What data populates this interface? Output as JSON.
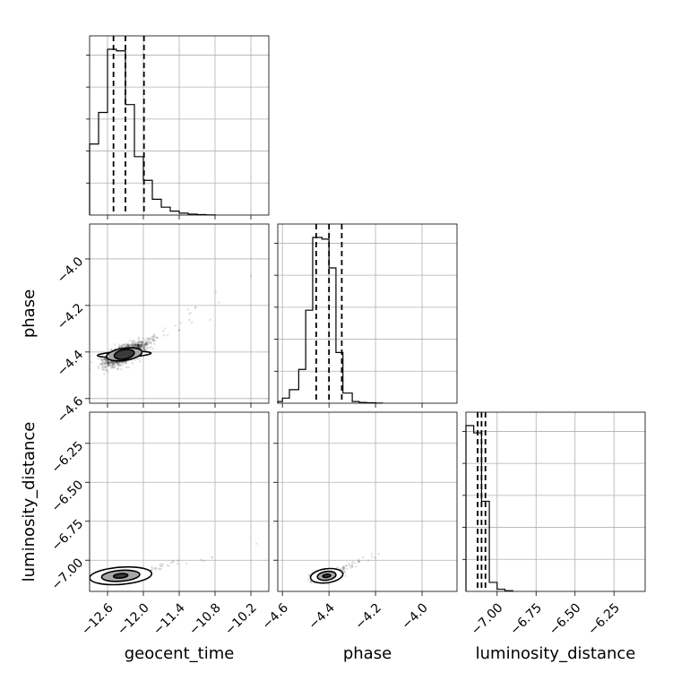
{
  "chart_data": {
    "type": "corner",
    "parameters": [
      "geocent_time",
      "phase",
      "luminosity_distance"
    ],
    "axes": {
      "geocent_time": {
        "label": "geocent_time",
        "range": [
          -12.9,
          -9.9
        ],
        "ticks": [
          -12.6,
          -12.0,
          -11.4,
          -10.8,
          -10.2
        ],
        "tick_labels": [
          "−12.6",
          "−12.0",
          "−11.4",
          "−10.8",
          "−10.2"
        ]
      },
      "phase": {
        "label": "phase",
        "range": [
          -4.62,
          -3.85
        ],
        "ticks": [
          -4.6,
          -4.4,
          -4.2,
          -4.0
        ],
        "tick_labels": [
          "−4.6",
          "−4.4",
          "−4.2",
          "−4.0"
        ]
      },
      "luminosity_distance": {
        "label": "luminosity_distance",
        "range": [
          -7.2,
          -6.05
        ],
        "ticks": [
          -7.0,
          -6.75,
          -6.5,
          -6.25
        ],
        "tick_labels": [
          "−7.00",
          "−6.75",
          "−6.50",
          "−6.25"
        ]
      }
    },
    "histograms": {
      "geocent_time": {
        "bin_edges": [
          -12.9,
          -12.75,
          -12.6,
          -12.45,
          -12.3,
          -12.15,
          -12.0,
          -11.85,
          -11.7,
          -11.55,
          -11.4,
          -11.25,
          -11.1,
          -10.95,
          -10.8
        ],
        "counts": [
          0.45,
          0.65,
          1.05,
          1.04,
          0.7,
          0.37,
          0.22,
          0.1,
          0.05,
          0.025,
          0.012,
          0.006,
          0.003,
          0.001
        ],
        "quantiles": [
          -12.5,
          -12.3,
          -11.99
        ]
      },
      "phase": {
        "bin_edges": [
          -4.62,
          -4.6,
          -4.57,
          -4.53,
          -4.5,
          -4.47,
          -4.43,
          -4.4,
          -4.37,
          -4.34,
          -4.3,
          -4.27,
          -4.24,
          -4.2,
          -4.17
        ],
        "counts": [
          0.01,
          0.03,
          0.08,
          0.2,
          0.55,
          0.98,
          0.97,
          0.8,
          0.3,
          0.06,
          0.01,
          0.005,
          0.003,
          0.001
        ],
        "quantiles": [
          -4.455,
          -4.4,
          -4.345
        ]
      },
      "luminosity_distance": {
        "bin_edges": [
          -7.2,
          -7.15,
          -7.1,
          -7.05,
          -7.0,
          -6.95,
          -6.9
        ],
        "counts": [
          0.92,
          0.88,
          0.5,
          0.05,
          0.012,
          0.004
        ],
        "quantiles": [
          -7.125,
          -7.1,
          -7.075
        ]
      }
    },
    "scatter_panels": [
      {
        "x": "geocent_time",
        "y": "phase",
        "center": [
          -12.32,
          -4.41
        ],
        "spread": [
          0.32,
          0.045
        ],
        "corr": 0.7,
        "levels": [
          [
            0.45,
            0.012
          ],
          [
            0.3,
            0.026
          ],
          [
            0.17,
            0.02
          ]
        ]
      },
      {
        "x": "geocent_time",
        "y": "luminosity_distance",
        "center": [
          -12.38,
          -7.1
        ],
        "spread": [
          0.32,
          0.028
        ],
        "corr": 0.45,
        "levels": [
          [
            0.52,
            0.055
          ],
          [
            0.32,
            0.035
          ],
          [
            0.12,
            0.014
          ]
        ]
      },
      {
        "x": "phase",
        "y": "luminosity_distance",
        "center": [
          -4.41,
          -7.1
        ],
        "spread": [
          0.045,
          0.028
        ],
        "corr": 0.5,
        "levels": [
          [
            0.07,
            0.045
          ],
          [
            0.04,
            0.028
          ],
          [
            0.017,
            0.01
          ]
        ]
      }
    ],
    "grid": true
  }
}
